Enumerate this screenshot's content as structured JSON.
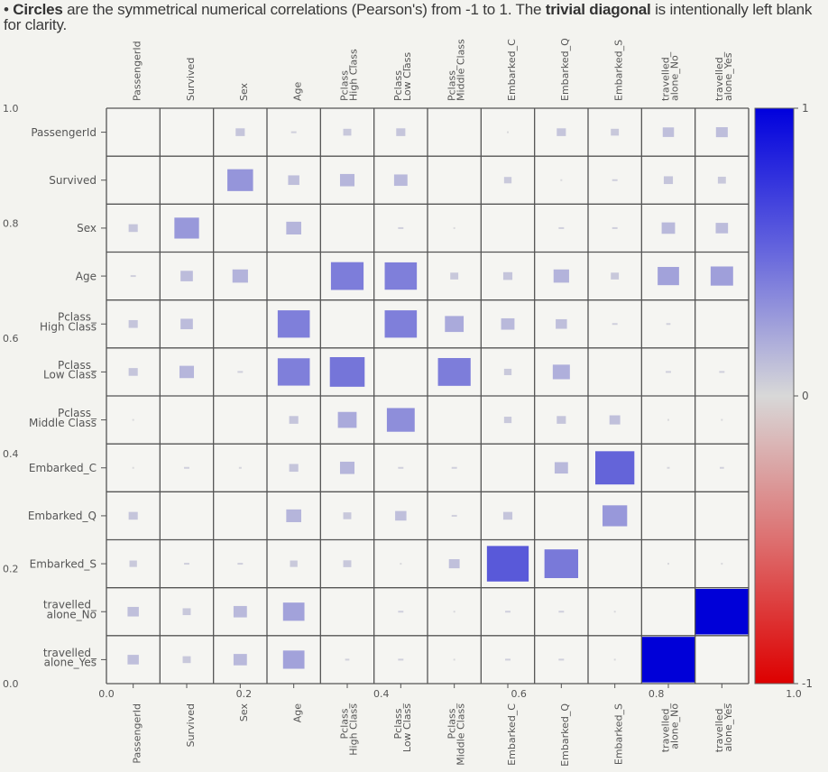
{
  "caption": {
    "bullet": "•",
    "bold1": "Circles",
    "text1": " are the symmetrical numerical correlations (Pearson's) from -1 to 1. The ",
    "bold2": "trivial diagonal",
    "text2": " is intentionally left blank for clarity."
  },
  "chart_data": {
    "type": "heatmap",
    "title": "",
    "labels": [
      "PassengerId",
      "Survived",
      "Sex",
      "Age",
      "Pclass_\nHigh Class",
      "Pclass_\nLow Class",
      "Pclass_\nMiddle Class",
      "Embarked_C",
      "Embarked_Q",
      "Embarked_S",
      "travelled_\nalone_No",
      "travelled_\nalone_Yes"
    ],
    "values": [
      [
        null,
        0,
        0.17,
        0.1,
        0.15,
        0.17,
        0,
        0.02,
        0.17,
        0.15,
        0.21,
        0.22
      ],
      [
        0,
        null,
        0.48,
        0.21,
        0.27,
        0.25,
        0,
        0.14,
        0.02,
        0.1,
        0.17,
        0.15
      ],
      [
        0.17,
        0.46,
        null,
        0.28,
        0,
        0.1,
        0.02,
        0,
        0.1,
        0.1,
        0.25,
        0.23
      ],
      [
        0.1,
        0.23,
        0.29,
        null,
        0.61,
        0.6,
        0.15,
        0.17,
        0.29,
        0.15,
        0.4,
        0.42
      ],
      [
        0.17,
        0.23,
        0,
        0.6,
        null,
        0.6,
        0.35,
        0.25,
        0.21,
        0.1,
        0.08,
        0
      ],
      [
        0.17,
        0.27,
        0.1,
        0.6,
        0.65,
        null,
        0.61,
        0.14,
        0.32,
        0,
        0.1,
        0.1
      ],
      [
        0.02,
        0,
        0,
        0.17,
        0.35,
        0.52,
        null,
        0.14,
        0.17,
        0.2,
        0.02,
        0.03
      ],
      [
        0.02,
        0.1,
        0.05,
        0.17,
        0.27,
        0.1,
        0.1,
        null,
        0.25,
        0.73,
        0.05,
        0.08
      ],
      [
        0.17,
        0,
        0,
        0.28,
        0.15,
        0.21,
        0.1,
        0.17,
        null,
        0.46,
        0,
        0
      ],
      [
        0.14,
        0.1,
        0.1,
        0.14,
        0.15,
        0.02,
        0.2,
        0.78,
        0.63,
        null,
        0.03,
        0.03
      ],
      [
        0.21,
        0.15,
        0.25,
        0.4,
        0,
        0.1,
        0.03,
        0.1,
        0.1,
        0.03,
        null,
        1.0
      ],
      [
        0.21,
        0.15,
        0.25,
        0.4,
        0.08,
        0.1,
        0.03,
        0.1,
        0.1,
        0.03,
        1.0,
        null
      ]
    ],
    "value_range": [
      -1,
      1
    ],
    "colorbar": {
      "ticks": [
        "1",
        "0",
        "-1"
      ],
      "colors": {
        "positive": "#0000dd",
        "zero": "#d8d8d8",
        "negative": "#dd0000"
      }
    },
    "stray_axis": {
      "y_ticks": [
        "1.0",
        "0.8",
        "0.6",
        "0.4",
        "0.2",
        "0.0"
      ],
      "x_ticks": [
        "0.0",
        "0.2",
        "0.4",
        "0.6",
        "0.8",
        "1.0"
      ]
    },
    "grid": true
  }
}
